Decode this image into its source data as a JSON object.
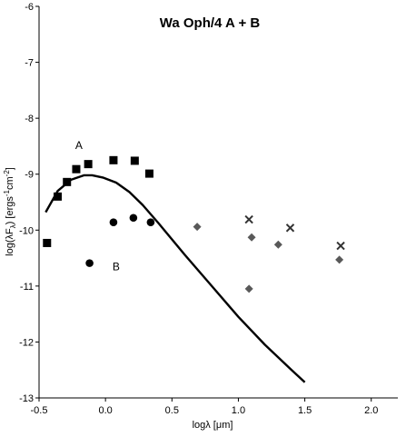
{
  "chart_data": {
    "type": "scatter",
    "title": "Wa Oph/4 A + B",
    "xlabel": "logλ [μm]",
    "ylabel": "log(λF",
    "ylabel_sub": "λ",
    "ylabel_tail": ") [ergs",
    "ylabel_sup1": "-1",
    "ylabel_mid": "cm",
    "ylabel_sup2": "-2",
    "ylabel_end": "]",
    "xlim": [
      -0.5,
      2.2
    ],
    "ylim": [
      -13,
      -6
    ],
    "x_ticks": [
      -0.5,
      0.0,
      0.5,
      1.0,
      1.5,
      2.0
    ],
    "x_tick_labels": [
      "-0.5",
      "0.0",
      "0.5",
      "1.0",
      "1.5",
      "2.0"
    ],
    "y_ticks": [
      -13,
      -12,
      -11,
      -10,
      -9,
      -8,
      -7,
      -6
    ],
    "y_tick_labels": [
      "-13",
      "-12",
      "-11",
      "-10",
      "-9",
      "-8",
      "-7",
      "-6"
    ],
    "grid": false,
    "annotations": [
      {
        "text": "A",
        "x": -0.2,
        "y": -8.55
      },
      {
        "text": "B",
        "x": 0.08,
        "y": -10.72
      }
    ],
    "series": [
      {
        "marker": "square",
        "color": "#000000",
        "x": [
          -0.44,
          -0.36,
          -0.29,
          -0.22,
          -0.13,
          0.06,
          0.22,
          0.33
        ],
        "y": [
          -10.23,
          -9.4,
          -9.14,
          -8.91,
          -8.82,
          -8.75,
          -8.76,
          -8.99
        ]
      },
      {
        "marker": "circle",
        "color": "#000000",
        "x": [
          -0.12,
          0.06,
          0.21,
          0.34
        ],
        "y": [
          -10.59,
          -9.86,
          -9.78,
          -9.86
        ]
      },
      {
        "marker": "diamond",
        "color": "#595959",
        "x": [
          0.69,
          1.1,
          1.08,
          1.3,
          1.76
        ],
        "y": [
          -9.94,
          -10.13,
          -11.05,
          -10.26,
          -10.53
        ]
      },
      {
        "marker": "cross",
        "color": "#333333",
        "x": [
          1.08,
          1.39,
          1.77
        ],
        "y": [
          -9.81,
          -9.96,
          -10.28
        ]
      },
      {
        "marker": "line",
        "color": "#000000",
        "x": [
          -0.45,
          -0.36,
          -0.26,
          -0.16,
          -0.1,
          -0.02,
          0.08,
          0.18,
          0.28,
          0.4,
          0.6,
          0.8,
          1.0,
          1.2,
          1.4,
          1.5
        ],
        "y": [
          -9.68,
          -9.3,
          -9.1,
          -9.02,
          -9.02,
          -9.06,
          -9.15,
          -9.32,
          -9.55,
          -9.88,
          -10.45,
          -11.0,
          -11.55,
          -12.05,
          -12.5,
          -12.72
        ]
      }
    ]
  }
}
